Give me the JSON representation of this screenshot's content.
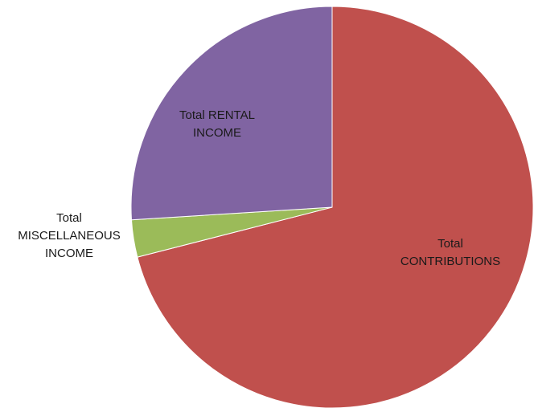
{
  "chart_data": {
    "type": "pie",
    "title": "",
    "slices": [
      {
        "label_lines": [
          "Total",
          "CONTRIBUTIONS"
        ],
        "value": 71,
        "color": "#c0504d"
      },
      {
        "label_lines": [
          "Total",
          "MISCELLANEOUS",
          "INCOME"
        ],
        "value": 3,
        "color": "#9bbb59"
      },
      {
        "label_lines": [
          "Total RENTAL",
          "INCOME"
        ],
        "value": 26,
        "color": "#8064a2"
      }
    ],
    "start_angle_deg": 0,
    "direction": "clockwise",
    "legend": "none"
  }
}
